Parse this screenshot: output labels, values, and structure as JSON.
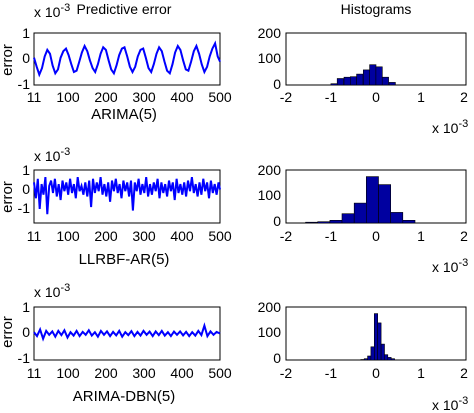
{
  "chart_data": [
    {
      "type": "line",
      "title": "Predictive error",
      "xlabel": "ARIMA(5)",
      "ylabel": "error",
      "y_exponent": "x 10",
      "y_exponent_power": "-3",
      "xlim": [
        11,
        500
      ],
      "ylim": [
        -1,
        1
      ],
      "xticks": [
        "11",
        "100",
        "200",
        "300",
        "400",
        "500"
      ],
      "yticks": [
        "-1",
        "0",
        "1"
      ],
      "line_color": "#0000ff",
      "series": [
        {
          "x": [
            11,
            18,
            25,
            32,
            39,
            46,
            53,
            60,
            67,
            74,
            81,
            88,
            95,
            102,
            109,
            116,
            123,
            130,
            137,
            144,
            151,
            158,
            165,
            172,
            179,
            186,
            193,
            200,
            207,
            214,
            221,
            228,
            235,
            242,
            249,
            256,
            263,
            270,
            277,
            284,
            291,
            298,
            305,
            312,
            319,
            326,
            333,
            340,
            347,
            354,
            361,
            368,
            375,
            382,
            389,
            396,
            403,
            410,
            417,
            424,
            431,
            438,
            445,
            452,
            459,
            466,
            473,
            480,
            487,
            494,
            500
          ],
          "y": [
            0.05,
            -0.3,
            -0.6,
            -0.35,
            0.1,
            0.35,
            0.2,
            -0.25,
            -0.55,
            -0.4,
            0.05,
            0.3,
            0.4,
            0.15,
            -0.2,
            -0.5,
            -0.45,
            -0.1,
            0.25,
            0.5,
            0.3,
            -0.05,
            -0.35,
            -0.5,
            -0.2,
            0.2,
            0.45,
            0.35,
            -0.05,
            -0.4,
            -0.55,
            -0.25,
            0.15,
            0.4,
            0.45,
            0.1,
            -0.3,
            -0.5,
            -0.3,
            0.1,
            0.35,
            0.4,
            0.05,
            -0.35,
            -0.5,
            -0.2,
            0.2,
            0.45,
            0.3,
            -0.1,
            -0.45,
            -0.55,
            -0.2,
            0.25,
            0.5,
            0.35,
            -0.05,
            -0.4,
            -0.45,
            -0.1,
            0.3,
            0.5,
            0.2,
            -0.2,
            -0.5,
            -0.3,
            0.1,
            0.4,
            0.6,
            0.1,
            -0.1
          ]
        }
      ]
    },
    {
      "type": "bar",
      "title": "Histograms",
      "x_exponent": "x 10",
      "x_exponent_power": "-3",
      "xlim": [
        -2,
        2
      ],
      "ylim": [
        0,
        200
      ],
      "xticks": [
        "-2",
        "-1",
        "0",
        "1",
        "2"
      ],
      "yticks": [
        "0",
        "100",
        "200"
      ],
      "bar_color": "#0000a0",
      "bin_width": 0.143,
      "bin_centers": [
        -0.93,
        -0.79,
        -0.64,
        -0.5,
        -0.36,
        -0.21,
        -0.07,
        0.07,
        0.21,
        0.36
      ],
      "values": [
        5,
        25,
        30,
        32,
        42,
        58,
        78,
        70,
        30,
        10
      ]
    },
    {
      "type": "line",
      "xlabel": "LLRBF-AR(5)",
      "ylabel": "error",
      "y_exponent": "x 10",
      "y_exponent_power": "-3",
      "xlim": [
        11,
        500
      ],
      "ylim": [
        -2,
        1
      ],
      "xticks": [
        "11",
        "100",
        "200",
        "300",
        "400",
        "500"
      ],
      "yticks": [
        "-1",
        "0",
        "1"
      ],
      "line_color": "#0000ff",
      "series": [
        {
          "x": [
            11,
            16,
            21,
            26,
            31,
            36,
            41,
            46,
            51,
            56,
            61,
            66,
            71,
            76,
            81,
            86,
            91,
            96,
            101,
            106,
            111,
            116,
            121,
            126,
            131,
            136,
            141,
            146,
            151,
            156,
            161,
            166,
            171,
            176,
            181,
            186,
            191,
            196,
            201,
            206,
            211,
            216,
            221,
            226,
            231,
            236,
            241,
            246,
            251,
            256,
            261,
            266,
            271,
            276,
            281,
            286,
            291,
            296,
            301,
            306,
            311,
            316,
            321,
            326,
            331,
            336,
            341,
            346,
            351,
            356,
            361,
            366,
            371,
            376,
            381,
            386,
            391,
            396,
            401,
            406,
            411,
            416,
            421,
            426,
            431,
            436,
            441,
            446,
            451,
            456,
            461,
            466,
            471,
            476,
            481,
            486,
            491,
            496,
            500
          ],
          "y": [
            0.3,
            -0.6,
            0.5,
            -1.2,
            0.2,
            -0.4,
            0.6,
            -1.5,
            0.1,
            0.4,
            -0.3,
            0.5,
            -0.5,
            0.2,
            -0.7,
            0.4,
            -0.2,
            0.3,
            -0.4,
            0.5,
            -0.3,
            0.2,
            -0.6,
            0.6,
            -0.2,
            0.1,
            -0.4,
            0.3,
            -0.5,
            0.4,
            -1.1,
            0.5,
            -0.3,
            0.3,
            -0.2,
            0.6,
            -0.4,
            0.2,
            -0.5,
            0.3,
            -0.8,
            0.4,
            -0.2,
            0.5,
            -0.3,
            0.2,
            -0.6,
            0.4,
            -0.2,
            0.3,
            -0.5,
            0.4,
            -1.3,
            0.3,
            -0.2,
            0.5,
            -0.4,
            0.2,
            -0.3,
            0.6,
            -0.5,
            0.2,
            -0.4,
            0.3,
            -0.2,
            0.5,
            -0.6,
            0.3,
            -0.3,
            0.2,
            -0.5,
            0.4,
            -0.2,
            0.3,
            -0.7,
            0.5,
            -0.3,
            0.2,
            -0.4,
            0.3,
            -0.5,
            0.4,
            -0.2,
            0.6,
            -0.3,
            0.2,
            -0.5,
            0.3,
            -0.4,
            0.5,
            -0.2,
            0.3,
            -0.6,
            0.4,
            -0.3,
            0.2,
            -0.4,
            0.3,
            -0.1
          ]
        }
      ]
    },
    {
      "type": "bar",
      "x_exponent": "x 10",
      "x_exponent_power": "-3",
      "xlim": [
        -2,
        2
      ],
      "ylim": [
        0,
        200
      ],
      "xticks": [
        "-2",
        "-1",
        "0",
        "1",
        "2"
      ],
      "yticks": [
        "0",
        "100",
        "200"
      ],
      "bar_color": "#0000a0",
      "bin_width": 0.27,
      "bin_centers": [
        -1.43,
        -1.16,
        -0.89,
        -0.62,
        -0.35,
        -0.08,
        0.19,
        0.46,
        0.73
      ],
      "values": [
        3,
        5,
        10,
        35,
        75,
        175,
        145,
        40,
        10
      ]
    },
    {
      "type": "line",
      "xlabel": "ARIMA-DBN(5)",
      "ylabel": "error",
      "y_exponent": "x 10",
      "y_exponent_power": "-3",
      "xlim": [
        11,
        500
      ],
      "ylim": [
        -1,
        1
      ],
      "xticks": [
        "11",
        "100",
        "200",
        "300",
        "400",
        "500"
      ],
      "yticks": [
        "-1",
        "0",
        "1"
      ],
      "line_color": "#0000ff",
      "series": [
        {
          "x": [
            11,
            19,
            27,
            35,
            43,
            51,
            59,
            67,
            75,
            83,
            91,
            99,
            107,
            115,
            123,
            131,
            139,
            147,
            155,
            163,
            171,
            179,
            187,
            195,
            203,
            211,
            219,
            227,
            235,
            243,
            251,
            259,
            267,
            275,
            283,
            291,
            299,
            307,
            315,
            323,
            331,
            339,
            347,
            355,
            363,
            371,
            379,
            387,
            395,
            403,
            411,
            419,
            427,
            435,
            443,
            451,
            459,
            467,
            475,
            483,
            491,
            500
          ],
          "y": [
            0.05,
            -0.1,
            0.15,
            -0.2,
            0.1,
            -0.05,
            0.08,
            -0.12,
            0.1,
            -0.06,
            0.12,
            -0.15,
            0.05,
            -0.08,
            0.1,
            -0.1,
            0.06,
            -0.05,
            0.12,
            -0.08,
            0.05,
            -0.12,
            0.1,
            -0.05,
            0.08,
            -0.1,
            0.06,
            -0.07,
            0.1,
            -0.12,
            0.05,
            -0.06,
            0.09,
            -0.1,
            0.06,
            -0.08,
            0.1,
            -0.05,
            0.07,
            -0.1,
            0.08,
            -0.06,
            0.1,
            -0.08,
            0.05,
            -0.1,
            0.07,
            -0.05,
            0.08,
            -0.07,
            0.06,
            -0.1,
            0.05,
            -0.08,
            0.1,
            -0.06,
            0.3,
            -0.1,
            0.08,
            -0.05,
            0.06,
            0.0
          ]
        }
      ]
    },
    {
      "type": "bar",
      "x_exponent": "x 10",
      "x_exponent_power": "-3",
      "xlim": [
        -2,
        2
      ],
      "ylim": [
        0,
        200
      ],
      "xticks": [
        "-2",
        "-1",
        "0",
        "1",
        "2"
      ],
      "yticks": [
        "0",
        "100",
        "200"
      ],
      "bar_color": "#0000a0",
      "bin_width": 0.075,
      "bin_centers": [
        -0.3,
        -0.225,
        -0.15,
        -0.075,
        0.0,
        0.075,
        0.15,
        0.225,
        0.3,
        0.375
      ],
      "values": [
        2,
        5,
        15,
        50,
        175,
        140,
        60,
        20,
        10,
        5
      ]
    }
  ]
}
